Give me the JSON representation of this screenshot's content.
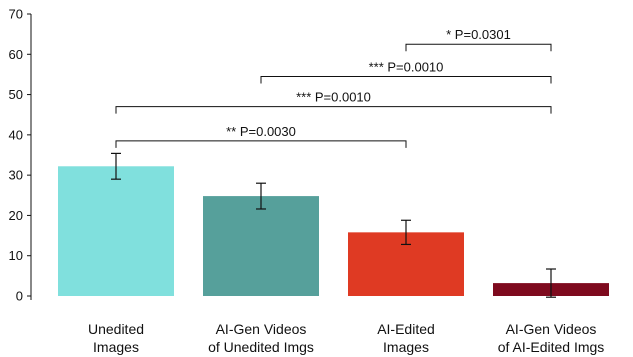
{
  "chart_data": {
    "type": "bar",
    "categories": [
      [
        "Unedited",
        "Images"
      ],
      [
        "AI-Gen Videos",
        "of Unedited Imgs"
      ],
      [
        "AI-Edited",
        "Images"
      ],
      [
        "AI-Gen Videos",
        "of AI-Edited Imgs"
      ]
    ],
    "values": [
      32.2,
      24.8,
      15.8,
      3.2
    ],
    "errors": [
      3.2,
      3.2,
      3.0,
      3.5
    ],
    "colors": [
      "#80e0dd",
      "#56a09b",
      "#df3a23",
      "#7e0a1e"
    ],
    "ylim": [
      0,
      70
    ],
    "yticks": [
      0,
      10,
      20,
      30,
      40,
      50,
      60,
      70
    ],
    "grid": false,
    "significance": [
      {
        "from": 0,
        "to": 2,
        "y": 38.5,
        "label": "** P=0.0030"
      },
      {
        "from": 0,
        "to": 3,
        "y": 47,
        "label": "*** P=0.0010"
      },
      {
        "from": 1,
        "to": 3,
        "y": 54.5,
        "label": "*** P=0.0010"
      },
      {
        "from": 2,
        "to": 3,
        "y": 62.5,
        "label": "* P=0.0301"
      }
    ]
  }
}
